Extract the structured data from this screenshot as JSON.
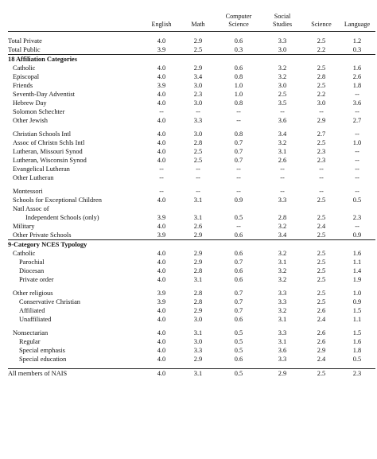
{
  "header": {
    "columns": [
      "",
      "English",
      "Math",
      "Computer\nScience",
      "Social\nStudies",
      "Science",
      "Language"
    ]
  },
  "rows": [
    {
      "kind": "spacer"
    },
    {
      "label": "Total Private",
      "vals": [
        "4.0",
        "2.9",
        "0.6",
        "3.3",
        "2.5",
        "1.2"
      ],
      "indent": 0
    },
    {
      "label": "Total Public",
      "vals": [
        "3.9",
        "2.5",
        "0.3",
        "3.0",
        "2.2",
        "0.3"
      ],
      "indent": 0
    },
    {
      "kind": "rule"
    },
    {
      "label": "18 Affiliation Categories",
      "vals": [
        "",
        "",
        "",
        "",
        "",
        ""
      ],
      "section": true,
      "indent": 0
    },
    {
      "label": "Catholic",
      "vals": [
        "4.0",
        "2.9",
        "0.6",
        "3.2",
        "2.5",
        "1.6"
      ],
      "indent": 1
    },
    {
      "label": "Episcopal",
      "vals": [
        "4.0",
        "3.4",
        "0.8",
        "3.2",
        "2.8",
        "2.6"
      ],
      "indent": 1
    },
    {
      "label": "Friends",
      "vals": [
        "3.9",
        "3.0",
        "1.0",
        "3.0",
        "2.5",
        "1.8"
      ],
      "indent": 1
    },
    {
      "label": "Seventh-Day Adventist",
      "vals": [
        "4.0",
        "2.3",
        "1.0",
        "2.5",
        "2.2",
        "--"
      ],
      "indent": 1
    },
    {
      "label": "Hebrew Day",
      "vals": [
        "4.0",
        "3.0",
        "0.8",
        "3.5",
        "3.0",
        "3.6"
      ],
      "indent": 1
    },
    {
      "label": "Solomon Schechter",
      "vals": [
        "--",
        "--",
        "--",
        "--",
        "--",
        "--"
      ],
      "indent": 1
    },
    {
      "label": "Other Jewish",
      "vals": [
        "4.0",
        "3.3",
        "--",
        "3.6",
        "2.9",
        "2.7"
      ],
      "indent": 1
    },
    {
      "kind": "spacer"
    },
    {
      "label": "Christian Schools Intl",
      "vals": [
        "4.0",
        "3.0",
        "0.8",
        "3.4",
        "2.7",
        "--"
      ],
      "indent": 1
    },
    {
      "label": "Assoc of Christn Schls Intl",
      "vals": [
        "4.0",
        "2.8",
        "0.7",
        "3.2",
        "2.5",
        "1.0"
      ],
      "indent": 1
    },
    {
      "label": "Lutheran, Missouri Synod",
      "vals": [
        "4.0",
        "2.5",
        "0.7",
        "3.1",
        "2.3",
        "--"
      ],
      "indent": 1
    },
    {
      "label": "Lutheran, Wisconsin Synod",
      "vals": [
        "4.0",
        "2.5",
        "0.7",
        "2.6",
        "2.3",
        "--"
      ],
      "indent": 1
    },
    {
      "label": "Evangelical Lutheran",
      "vals": [
        "--",
        "--",
        "--",
        "--",
        "--",
        "--"
      ],
      "indent": 1
    },
    {
      "label": "Other Lutheran",
      "vals": [
        "--",
        "--",
        "--",
        "--",
        "--",
        "--"
      ],
      "indent": 1
    },
    {
      "kind": "spacer"
    },
    {
      "label": "Montessori",
      "vals": [
        "--",
        "--",
        "--",
        "--",
        "--",
        "--"
      ],
      "indent": 1
    },
    {
      "label": "Schools for Exceptional Children",
      "vals": [
        "4.0",
        "3.1",
        "0.9",
        "3.3",
        "2.5",
        "0.5"
      ],
      "indent": 1
    },
    {
      "label": "Natl Assoc of",
      "vals": [
        "",
        "",
        "",
        "",
        "",
        ""
      ],
      "indent": 1
    },
    {
      "label": "Independent Schools (only)",
      "vals": [
        "3.9",
        "3.1",
        "0.5",
        "2.8",
        "2.5",
        "2.3"
      ],
      "indent": 3
    },
    {
      "label": "Military",
      "vals": [
        "4.0",
        "2.6",
        "--",
        "3.2",
        "2.4",
        "--"
      ],
      "indent": 1
    },
    {
      "label": "Other Private Schools",
      "vals": [
        "3.9",
        "2.9",
        "0.6",
        "3.4",
        "2.5",
        "0.9"
      ],
      "indent": 1
    },
    {
      "kind": "rule"
    },
    {
      "label": "9-Category NCES Typology",
      "vals": [
        "",
        "",
        "",
        "",
        "",
        ""
      ],
      "section": true,
      "indent": 0
    },
    {
      "label": "Catholic",
      "vals": [
        "4.0",
        "2.9",
        "0.6",
        "3.2",
        "2.5",
        "1.6"
      ],
      "indent": 1
    },
    {
      "label": "Parochial",
      "vals": [
        "4.0",
        "2.9",
        "0.7",
        "3.1",
        "2.5",
        "1.1"
      ],
      "indent": 2
    },
    {
      "label": "Diocesan",
      "vals": [
        "4.0",
        "2.8",
        "0.6",
        "3.2",
        "2.5",
        "1.4"
      ],
      "indent": 2
    },
    {
      "label": "Private order",
      "vals": [
        "4.0",
        "3.1",
        "0.6",
        "3.2",
        "2.5",
        "1.9"
      ],
      "indent": 2
    },
    {
      "kind": "spacer"
    },
    {
      "label": "Other religious",
      "vals": [
        "3.9",
        "2.8",
        "0.7",
        "3.3",
        "2.5",
        "1.0"
      ],
      "indent": 1
    },
    {
      "label": "Conservative Christian",
      "vals": [
        "3.9",
        "2.8",
        "0.7",
        "3.3",
        "2.5",
        "0.9"
      ],
      "indent": 2
    },
    {
      "label": "Affiliated",
      "vals": [
        "4.0",
        "2.9",
        "0.7",
        "3.2",
        "2.6",
        "1.5"
      ],
      "indent": 2
    },
    {
      "label": "Unaffiliated",
      "vals": [
        "4.0",
        "3.0",
        "0.6",
        "3.1",
        "2.4",
        "1.1"
      ],
      "indent": 2
    },
    {
      "kind": "spacer"
    },
    {
      "label": "Nonsectarian",
      "vals": [
        "4.0",
        "3.1",
        "0.5",
        "3.3",
        "2.6",
        "1.5"
      ],
      "indent": 1
    },
    {
      "label": "Regular",
      "vals": [
        "4.0",
        "3.0",
        "0.5",
        "3.1",
        "2.6",
        "1.6"
      ],
      "indent": 2
    },
    {
      "label": "Special emphasis",
      "vals": [
        "4.0",
        "3.3",
        "0.5",
        "3.6",
        "2.9",
        "1.8"
      ],
      "indent": 2
    },
    {
      "label": "Special education",
      "vals": [
        "4.0",
        "2.9",
        "0.6",
        "3.3",
        "2.4",
        "0.5"
      ],
      "indent": 2
    },
    {
      "kind": "spacer"
    },
    {
      "kind": "rule"
    },
    {
      "label": "All members of NAIS",
      "vals": [
        "4.0",
        "3.1",
        "0.5",
        "2.9",
        "2.5",
        "2.3"
      ],
      "indent": 0
    }
  ]
}
